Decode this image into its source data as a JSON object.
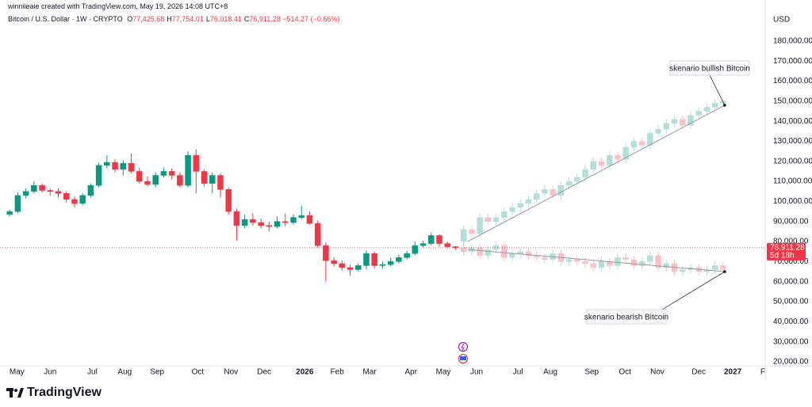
{
  "attribution": "winniieaie created with TradingView.com, May 19, 2026 14:08 UTC+8",
  "brand": "TradingView",
  "chart_data": {
    "type": "candlestick",
    "title": "Bitcoin / U.S. Dollar · 1W · CRYPTO",
    "ohlc_legend": [
      {
        "label": "O",
        "value": "77,425.68"
      },
      {
        "label": "H",
        "value": "77,754.01"
      },
      {
        "label": "L",
        "value": "76,018.41"
      },
      {
        "label": "C",
        "value": "76,911.28"
      }
    ],
    "change": "−514.27 (−0.66%)",
    "y_axis_label": "USD",
    "up_color": "#089981",
    "down_color": "#f23645",
    "grid": false,
    "xlim": [
      -0.7,
      93.2
    ],
    "xticks": [
      {
        "value": 0.9,
        "label": "May"
      },
      {
        "value": 5.0,
        "label": "Jun"
      },
      {
        "value": 10.2,
        "label": "Jul"
      },
      {
        "value": 14.2,
        "label": "Aug"
      },
      {
        "value": 18.2,
        "label": "Sep"
      },
      {
        "value": 23.2,
        "label": "Oct"
      },
      {
        "value": 27.3,
        "label": "Nov"
      },
      {
        "value": 31.4,
        "label": "Dec"
      },
      {
        "value": 36.4,
        "label": "2026"
      },
      {
        "value": 40.4,
        "label": "Feb"
      },
      {
        "value": 44.4,
        "label": "Mar"
      },
      {
        "value": 49.5,
        "label": "Apr"
      },
      {
        "value": 53.5,
        "label": "May"
      },
      {
        "value": 57.6,
        "label": "Jun"
      },
      {
        "value": 62.7,
        "label": "Jul"
      },
      {
        "value": 66.7,
        "label": "Aug"
      },
      {
        "value": 71.8,
        "label": "Sep"
      },
      {
        "value": 75.9,
        "label": "Oct"
      },
      {
        "value": 79.9,
        "label": "Nov"
      },
      {
        "value": 85.0,
        "label": "Dec"
      },
      {
        "value": 89.2,
        "label": "2027"
      },
      {
        "value": 92.9,
        "label": "F"
      }
    ],
    "ylim": [
      18000,
      200500
    ],
    "yticks": [
      {
        "value": 20000,
        "label": "20,000.00"
      },
      {
        "value": 30000,
        "label": "30,000.00"
      },
      {
        "value": 40000,
        "label": "40,000.00"
      },
      {
        "value": 50000,
        "label": "50,000.00"
      },
      {
        "value": 60000,
        "label": "60,000.00"
      },
      {
        "value": 70000,
        "label": "70,000.00"
      },
      {
        "value": 80000,
        "label": "80,000.00"
      },
      {
        "value": 90000,
        "label": "90,000.00"
      },
      {
        "value": 100000,
        "label": "100,000.00"
      },
      {
        "value": 110000,
        "label": "110,000.00"
      },
      {
        "value": 120000,
        "label": "120,000.00"
      },
      {
        "value": 130000,
        "label": "130,000.00"
      },
      {
        "value": 140000,
        "label": "140,000.00"
      },
      {
        "value": 150000,
        "label": "150,000.00"
      },
      {
        "value": 160000,
        "label": "160,000.00"
      },
      {
        "value": 170000,
        "label": "170,000.00"
      },
      {
        "value": 180000,
        "label": "180,000.00"
      }
    ],
    "last_price": {
      "value": 76911.28,
      "label": "76,911.28",
      "countdown": "5d 18h"
    },
    "candles": {
      "x": [
        0,
        1,
        2,
        3,
        4,
        5,
        6,
        7,
        8,
        9,
        10,
        11,
        12,
        13,
        14,
        15,
        16,
        17,
        18,
        19,
        20,
        21,
        22,
        23,
        24,
        25,
        26,
        27,
        28,
        29,
        30,
        31,
        32,
        33,
        34,
        35,
        36,
        37,
        38,
        39,
        40,
        41,
        42,
        43,
        44,
        45,
        46,
        47,
        48,
        49,
        50,
        51,
        52,
        53,
        54,
        55
      ],
      "open": [
        93500,
        95000,
        103000,
        105000,
        108000,
        105500,
        105000,
        104000,
        101000,
        99000,
        103000,
        108000,
        118000,
        119500,
        116000,
        119000,
        115000,
        110000,
        108500,
        113000,
        115000,
        113000,
        108000,
        123000,
        115000,
        109000,
        113000,
        106000,
        95000,
        88000,
        91000,
        89500,
        88000,
        87500,
        90000,
        89500,
        92000,
        93000,
        89000,
        78000,
        70500,
        69000,
        67000,
        66000,
        68000,
        74000,
        68000,
        68500,
        70000,
        72000,
        74000,
        78000,
        79000,
        83000,
        79000,
        77425.68
      ],
      "high": [
        96000,
        104500,
        106500,
        110000,
        109000,
        106500,
        106500,
        105000,
        102500,
        104000,
        109000,
        119500,
        123000,
        121000,
        120500,
        124000,
        117000,
        112500,
        114500,
        117000,
        116500,
        114500,
        125000,
        126000,
        116000,
        114500,
        114000,
        107000,
        96500,
        93500,
        94000,
        91500,
        90000,
        92500,
        94000,
        93500,
        98000,
        95000,
        90500,
        79500,
        72000,
        70500,
        68500,
        69000,
        75500,
        75000,
        70000,
        72000,
        73500,
        75500,
        80000,
        80500,
        84500,
        83500,
        80000,
        77754.01
      ],
      "low": [
        92500,
        94000,
        101500,
        104000,
        104500,
        103000,
        102000,
        99500,
        97000,
        98000,
        102000,
        107000,
        116500,
        114500,
        113000,
        114000,
        109000,
        107500,
        107000,
        112000,
        111000,
        107000,
        107000,
        104000,
        107500,
        104000,
        102000,
        93500,
        80500,
        86500,
        88000,
        86500,
        85000,
        86500,
        87500,
        88500,
        91000,
        88500,
        77000,
        60000,
        67500,
        65500,
        63000,
        65000,
        66000,
        66500,
        66500,
        67500,
        69000,
        71000,
        73000,
        77000,
        78000,
        77500,
        76500,
        76018.41
      ],
      "close": [
        95000,
        103000,
        105000,
        108000,
        105500,
        105000,
        104000,
        101000,
        99000,
        103000,
        108000,
        118000,
        119500,
        116000,
        119000,
        115000,
        110000,
        108500,
        113000,
        115000,
        113000,
        108000,
        123000,
        115000,
        109000,
        113000,
        106000,
        95000,
        88000,
        91000,
        89500,
        88000,
        87500,
        90000,
        89500,
        92000,
        93000,
        89000,
        78000,
        70500,
        69000,
        67000,
        66000,
        68000,
        74000,
        68000,
        68500,
        70000,
        72000,
        74000,
        78000,
        79000,
        83000,
        79000,
        77425.68,
        76911.28
      ]
    },
    "projections": [
      {
        "annotation": "skenario bullish Bitcoin",
        "x": [
          56,
          57,
          58,
          59,
          60,
          61,
          62,
          63,
          64,
          65,
          66,
          67,
          68,
          69,
          70,
          71,
          72,
          73,
          74,
          75,
          76,
          77,
          78,
          79,
          80,
          81,
          82,
          83,
          84,
          85,
          86,
          87,
          88
        ],
        "open": [
          80000,
          86000,
          84000,
          92000,
          90000,
          92000,
          95000,
          97000,
          99000,
          101000,
          104000,
          106000,
          103000,
          108000,
          110000,
          112000,
          116000,
          120000,
          118000,
          123000,
          121000,
          127000,
          130000,
          128000,
          134000,
          136000,
          139000,
          141000,
          138000,
          143000,
          145000,
          147000,
          149000
        ],
        "high": [
          88000,
          88000,
          94000,
          94000,
          94000,
          97000,
          99000,
          101000,
          103000,
          106000,
          108000,
          108000,
          110000,
          112000,
          114000,
          118000,
          122000,
          122000,
          125000,
          125000,
          129000,
          132000,
          132000,
          136000,
          138000,
          141000,
          143000,
          143000,
          145000,
          147000,
          149000,
          151000,
          152000
        ],
        "low": [
          78000,
          82000,
          82000,
          88000,
          88000,
          90000,
          93000,
          95000,
          97000,
          99000,
          102000,
          101000,
          101000,
          106000,
          108000,
          110000,
          114000,
          116000,
          116000,
          119000,
          119000,
          125000,
          126000,
          126000,
          132000,
          134000,
          137000,
          136000,
          136000,
          141000,
          143000,
          145000,
          147000
        ],
        "close": [
          86000,
          84000,
          92000,
          90000,
          92000,
          95000,
          97000,
          99000,
          101000,
          104000,
          106000,
          103000,
          108000,
          110000,
          112000,
          116000,
          120000,
          118000,
          123000,
          121000,
          127000,
          130000,
          128000,
          134000,
          136000,
          139000,
          141000,
          138000,
          143000,
          145000,
          147000,
          149000,
          150000
        ],
        "line": {
          "x": [
            56.5,
            88.2
          ],
          "y": [
            80000,
            148000
          ]
        }
      },
      {
        "annotation": "skenario bearish Bitcoin",
        "x": [
          56,
          57,
          58,
          59,
          60,
          61,
          62,
          63,
          64,
          65,
          66,
          67,
          68,
          69,
          70,
          71,
          72,
          73,
          74,
          75,
          76,
          77,
          78,
          79,
          80,
          81,
          82,
          83,
          84,
          85,
          86,
          87,
          88
        ],
        "open": [
          77000,
          75000,
          77000,
          73000,
          76000,
          78000,
          72000,
          74000,
          75000,
          73000,
          72000,
          71000,
          74000,
          70000,
          71000,
          70000,
          69000,
          67000,
          70000,
          68000,
          72000,
          71000,
          68000,
          70000,
          73000,
          67000,
          69000,
          65000,
          66000,
          67000,
          65000,
          66000,
          68000
        ],
        "high": [
          79000,
          79000,
          79000,
          78000,
          80000,
          80000,
          76000,
          77000,
          77000,
          75000,
          74000,
          76000,
          76000,
          73000,
          73000,
          72000,
          71000,
          72000,
          72000,
          74000,
          74000,
          73000,
          72000,
          75000,
          75000,
          71000,
          71000,
          68000,
          69000,
          69000,
          68000,
          70000,
          70000
        ],
        "low": [
          73000,
          73000,
          71000,
          71000,
          74000,
          70000,
          70000,
          72000,
          71000,
          70000,
          69000,
          69000,
          68000,
          68000,
          68000,
          67000,
          65000,
          65000,
          66000,
          66000,
          69000,
          66000,
          66000,
          68000,
          65000,
          65000,
          63000,
          63000,
          64000,
          63000,
          63000,
          64000,
          64000
        ],
        "close": [
          75000,
          77000,
          73000,
          76000,
          78000,
          72000,
          74000,
          75000,
          73000,
          72000,
          71000,
          74000,
          70000,
          71000,
          70000,
          69000,
          67000,
          70000,
          68000,
          72000,
          71000,
          68000,
          70000,
          73000,
          67000,
          69000,
          65000,
          66000,
          67000,
          65000,
          66000,
          68000,
          66000
        ],
        "line": {
          "x": [
            56.5,
            88.2
          ],
          "y": [
            76000,
            65000
          ]
        }
      }
    ]
  }
}
